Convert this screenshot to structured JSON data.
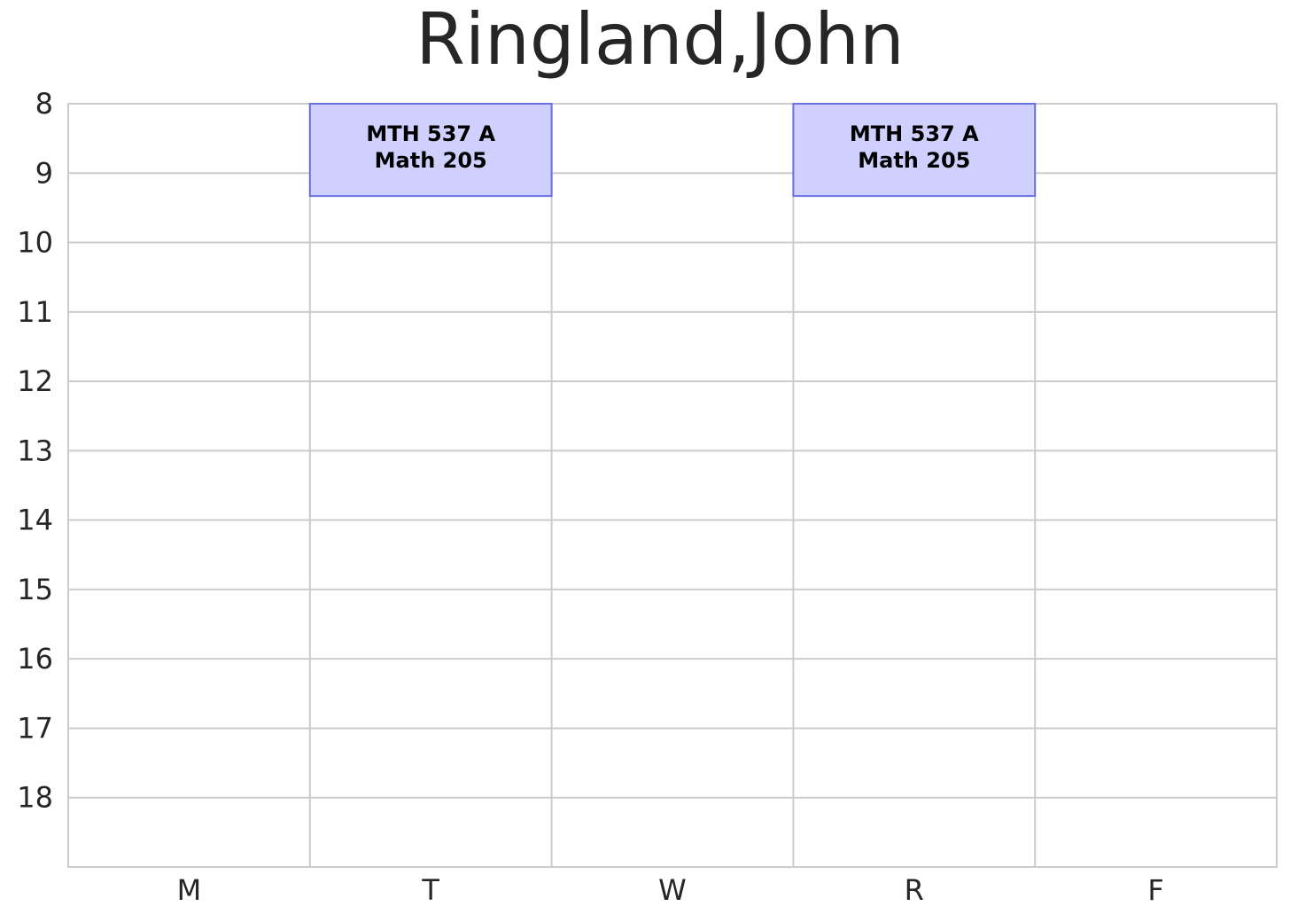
{
  "chart_data": {
    "type": "schedule",
    "title": "Ringland,John",
    "categories": [
      "M",
      "T",
      "W",
      "R",
      "F"
    ],
    "ylim": [
      8,
      19
    ],
    "y_inverted": true,
    "yticks": [
      8,
      9,
      10,
      11,
      12,
      13,
      14,
      15,
      16,
      17,
      18
    ],
    "grid": true,
    "color": "#d0d0fe",
    "edge_color": "#6b6fe0",
    "events": [
      {
        "day": "T",
        "start": 8,
        "end": 9.33,
        "course": "MTH 537 A",
        "room": "Math 205"
      },
      {
        "day": "R",
        "start": 8,
        "end": 9.33,
        "course": "MTH 537 A",
        "room": "Math 205"
      }
    ]
  }
}
